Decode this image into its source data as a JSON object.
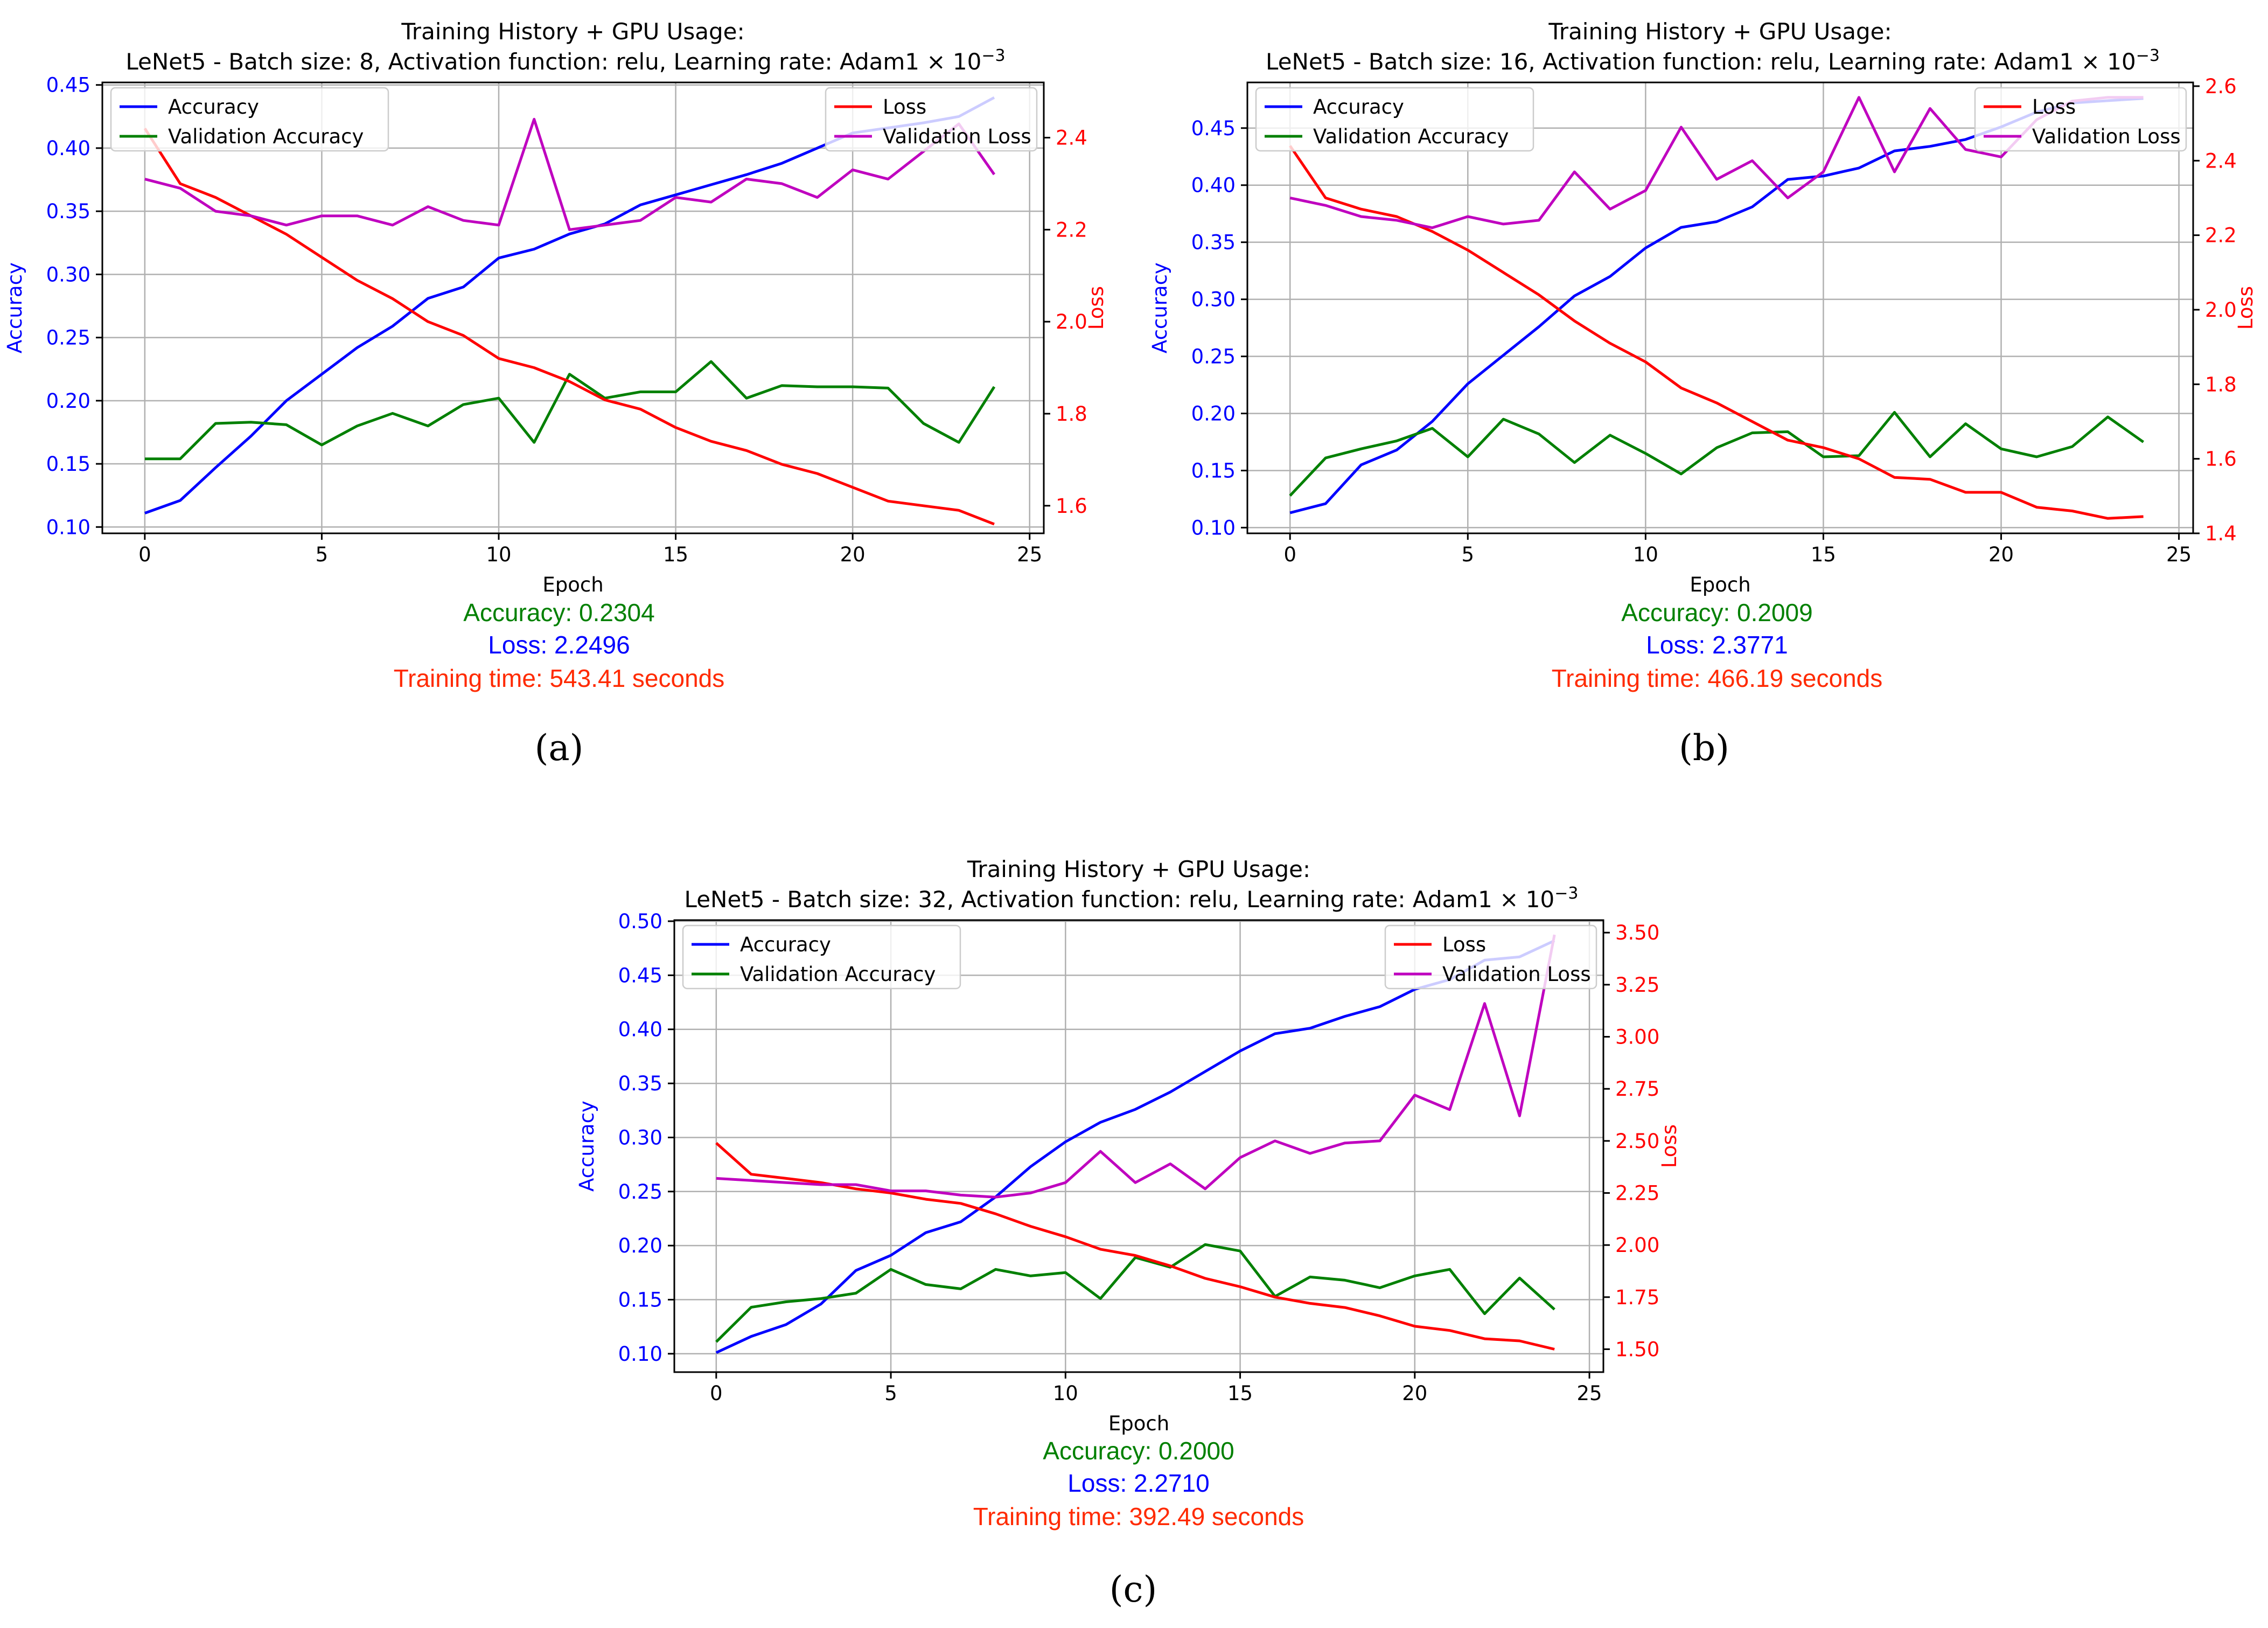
{
  "colors": {
    "accuracy": "#0000ff",
    "val_accuracy": "#008000",
    "loss": "#ff0000",
    "val_loss": "#bf00bf",
    "training_time": "#ff2a00",
    "grid": "#b0b0b0"
  },
  "figure": {
    "title_line1": "Training History + GPU Usage:",
    "xlabel": "Epoch",
    "ylabel_left": "Accuracy",
    "ylabel_right": "Loss",
    "legend_left": [
      "Accuracy",
      "Validation Accuracy"
    ],
    "legend_right": [
      "Loss",
      "Validation Loss"
    ],
    "x_ticks": [
      "0",
      "5",
      "10",
      "15",
      "20",
      "25"
    ]
  },
  "chart_data": [
    {
      "type": "line",
      "caption": "(a)",
      "title": "Training History + GPU Usage:",
      "subtitle": "LeNet5 - Batch size: 8, Activation function: relu, Learning rate: Adam1 × 10",
      "subtitle_exp": "−3",
      "xlabel": "Epoch",
      "ylabel": "Accuracy",
      "y2label": "Loss",
      "x": [
        0,
        1,
        2,
        3,
        4,
        5,
        6,
        7,
        8,
        9,
        10,
        11,
        12,
        13,
        14,
        15,
        16,
        17,
        18,
        19,
        20,
        21,
        22,
        23,
        24
      ],
      "xlim": [
        -1.2,
        25.4
      ],
      "ylim": [
        0.095,
        0.452
      ],
      "y2lim": [
        1.54,
        2.52
      ],
      "yticks": [
        "0.10",
        "0.15",
        "0.20",
        "0.25",
        "0.30",
        "0.35",
        "0.40",
        "0.45"
      ],
      "y2ticks": [
        "1.6",
        "1.8",
        "2.0",
        "2.2",
        "2.4"
      ],
      "legend_left_position": "upper-left",
      "legend_right_position": "upper-right",
      "grid": true,
      "series": [
        {
          "name": "Accuracy",
          "axis": "left",
          "values": [
            0.111,
            0.121,
            0.147,
            0.172,
            0.2,
            0.221,
            0.242,
            0.259,
            0.281,
            0.29,
            0.313,
            0.32,
            0.332,
            0.34,
            0.355,
            0.363,
            0.371,
            0.379,
            0.388,
            0.4,
            0.412,
            0.416,
            0.42,
            0.425,
            0.44
          ]
        },
        {
          "name": "Validation Accuracy",
          "axis": "left",
          "values": [
            0.154,
            0.154,
            0.182,
            0.183,
            0.181,
            0.165,
            0.18,
            0.19,
            0.18,
            0.197,
            0.202,
            0.167,
            0.221,
            0.202,
            0.207,
            0.207,
            0.231,
            0.202,
            0.212,
            0.211,
            0.211,
            0.21,
            0.182,
            0.167,
            0.211
          ]
        },
        {
          "name": "Loss",
          "axis": "right",
          "values": [
            2.42,
            2.3,
            2.27,
            2.23,
            2.19,
            2.14,
            2.09,
            2.05,
            2.0,
            1.97,
            1.92,
            1.9,
            1.87,
            1.83,
            1.81,
            1.77,
            1.74,
            1.72,
            1.69,
            1.67,
            1.64,
            1.61,
            1.6,
            1.59,
            1.56
          ]
        },
        {
          "name": "Validation Loss",
          "axis": "right",
          "values": [
            2.31,
            2.29,
            2.24,
            2.23,
            2.21,
            2.23,
            2.23,
            2.21,
            2.25,
            2.22,
            2.21,
            2.44,
            2.2,
            2.21,
            2.22,
            2.27,
            2.26,
            2.31,
            2.3,
            2.27,
            2.33,
            2.31,
            2.37,
            2.43,
            2.32
          ]
        }
      ],
      "stats": {
        "accuracy": "Accuracy: 0.2304",
        "loss": "Loss: 2.2496",
        "time": "Training time: 543.41 seconds"
      }
    },
    {
      "type": "line",
      "caption": "(b)",
      "title": "Training History + GPU Usage:",
      "subtitle": "LeNet5 - Batch size: 16, Activation function: relu, Learning rate: Adam1 × 10",
      "subtitle_exp": "−3",
      "xlabel": "Epoch",
      "ylabel": "Accuracy",
      "y2label": "Loss",
      "x": [
        0,
        1,
        2,
        3,
        4,
        5,
        6,
        7,
        8,
        9,
        10,
        11,
        12,
        13,
        14,
        15,
        16,
        17,
        18,
        19,
        20,
        21,
        22,
        23,
        24
      ],
      "xlim": [
        -1.2,
        25.4
      ],
      "ylim": [
        0.095,
        0.49
      ],
      "y2lim": [
        1.4,
        2.61
      ],
      "yticks": [
        "0.10",
        "0.15",
        "0.20",
        "0.25",
        "0.30",
        "0.35",
        "0.40",
        "0.45"
      ],
      "y2ticks": [
        "1.4",
        "1.6",
        "1.8",
        "2.0",
        "2.2",
        "2.4",
        "2.6"
      ],
      "legend_left_position": "upper-left",
      "legend_right_position": "upper-right",
      "grid": true,
      "series": [
        {
          "name": "Accuracy",
          "axis": "left",
          "values": [
            0.113,
            0.121,
            0.155,
            0.168,
            0.193,
            0.226,
            0.251,
            0.276,
            0.303,
            0.32,
            0.345,
            0.363,
            0.368,
            0.381,
            0.405,
            0.408,
            0.415,
            0.43,
            0.434,
            0.44,
            0.451,
            0.464,
            0.472,
            0.474,
            0.476
          ]
        },
        {
          "name": "Validation Accuracy",
          "axis": "left",
          "values": [
            0.128,
            0.161,
            0.169,
            0.176,
            0.187,
            0.162,
            0.195,
            0.182,
            0.157,
            0.181,
            0.165,
            0.147,
            0.17,
            0.183,
            0.184,
            0.162,
            0.163,
            0.201,
            0.162,
            0.191,
            0.169,
            0.162,
            0.171,
            0.197,
            0.175
          ]
        },
        {
          "name": "Loss",
          "axis": "right",
          "values": [
            2.44,
            2.3,
            2.27,
            2.25,
            2.21,
            2.16,
            2.1,
            2.04,
            1.97,
            1.91,
            1.86,
            1.79,
            1.75,
            1.7,
            1.65,
            1.63,
            1.6,
            1.55,
            1.545,
            1.51,
            1.51,
            1.47,
            1.46,
            1.44,
            1.445
          ]
        },
        {
          "name": "Validation Loss",
          "axis": "right",
          "values": [
            2.3,
            2.28,
            2.25,
            2.24,
            2.22,
            2.25,
            2.23,
            2.24,
            2.37,
            2.27,
            2.32,
            2.49,
            2.35,
            2.4,
            2.3,
            2.37,
            2.57,
            2.37,
            2.54,
            2.43,
            2.41,
            2.51,
            2.56,
            2.57,
            2.57
          ]
        }
      ],
      "stats": {
        "accuracy": "Accuracy: 0.2009",
        "loss": "Loss: 2.3771",
        "time": "Training time: 466.19 seconds"
      }
    },
    {
      "type": "line",
      "caption": "(c)",
      "title": "Training History + GPU Usage:",
      "subtitle": "LeNet5 - Batch size: 32, Activation function: relu, Learning rate: Adam1 × 10",
      "subtitle_exp": "−3",
      "xlabel": "Epoch",
      "ylabel": "Accuracy",
      "y2label": "Loss",
      "x": [
        0,
        1,
        2,
        3,
        4,
        5,
        6,
        7,
        8,
        9,
        10,
        11,
        12,
        13,
        14,
        15,
        16,
        17,
        18,
        19,
        20,
        21,
        22,
        23,
        24
      ],
      "xlim": [
        -1.2,
        25.4
      ],
      "ylim": [
        0.083,
        0.501
      ],
      "y2lim": [
        1.39,
        3.56
      ],
      "yticks": [
        "0.10",
        "0.15",
        "0.20",
        "0.25",
        "0.30",
        "0.35",
        "0.40",
        "0.45",
        "0.50"
      ],
      "y2ticks": [
        "1.50",
        "1.75",
        "2.00",
        "2.25",
        "2.50",
        "2.75",
        "3.00",
        "3.25",
        "3.50"
      ],
      "legend_left_position": "upper-left",
      "legend_right_position": "upper-right",
      "grid": true,
      "series": [
        {
          "name": "Accuracy",
          "axis": "left",
          "values": [
            0.101,
            0.116,
            0.127,
            0.146,
            0.177,
            0.191,
            0.212,
            0.222,
            0.245,
            0.273,
            0.296,
            0.314,
            0.326,
            0.342,
            0.361,
            0.38,
            0.396,
            0.401,
            0.412,
            0.421,
            0.437,
            0.446,
            0.464,
            0.467,
            0.482
          ]
        },
        {
          "name": "Validation Accuracy",
          "axis": "left",
          "values": [
            0.111,
            0.143,
            0.148,
            0.151,
            0.156,
            0.178,
            0.164,
            0.16,
            0.178,
            0.172,
            0.175,
            0.151,
            0.189,
            0.18,
            0.201,
            0.195,
            0.153,
            0.171,
            0.168,
            0.161,
            0.172,
            0.178,
            0.137,
            0.17,
            0.141
          ]
        },
        {
          "name": "Loss",
          "axis": "right",
          "values": [
            2.49,
            2.34,
            2.32,
            2.3,
            2.27,
            2.25,
            2.22,
            2.2,
            2.15,
            2.09,
            2.04,
            1.98,
            1.95,
            1.9,
            1.84,
            1.8,
            1.75,
            1.72,
            1.7,
            1.66,
            1.61,
            1.59,
            1.55,
            1.54,
            1.5
          ]
        },
        {
          "name": "Validation Loss",
          "axis": "right",
          "values": [
            2.32,
            2.31,
            2.3,
            2.29,
            2.29,
            2.26,
            2.26,
            2.24,
            2.23,
            2.25,
            2.3,
            2.45,
            2.3,
            2.39,
            2.27,
            2.42,
            2.5,
            2.44,
            2.49,
            2.5,
            2.72,
            2.65,
            3.16,
            2.62,
            3.49
          ]
        }
      ],
      "stats": {
        "accuracy": "Accuracy: 0.2000",
        "loss": "Loss: 2.2710",
        "time": "Training time: 392.49 seconds"
      }
    }
  ]
}
